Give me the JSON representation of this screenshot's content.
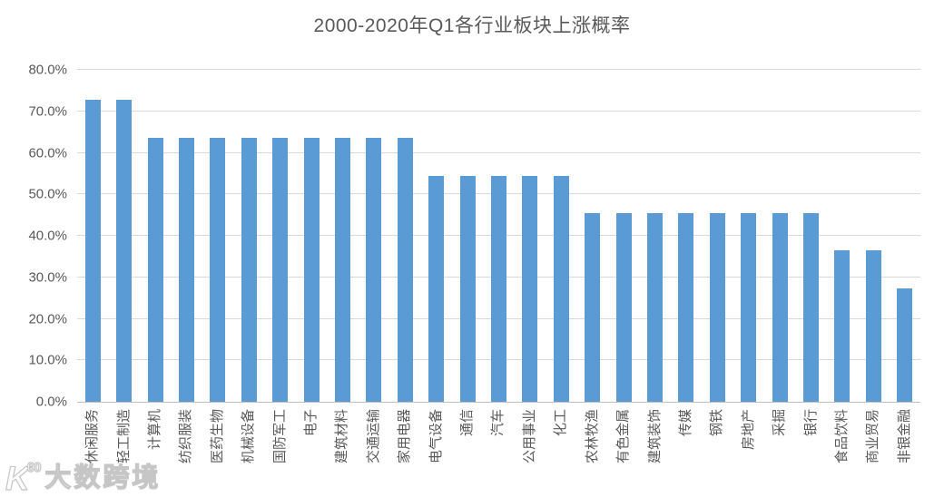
{
  "title": "2000-2020年Q1各行业板块上涨概率",
  "chart_data": {
    "type": "bar",
    "title": "2000-2020年Q1各行业板块上涨概率",
    "xlabel": "",
    "ylabel": "",
    "ylim": [
      0,
      80
    ],
    "grid": true,
    "legend": "none",
    "ytick_labels": [
      "80.0%",
      "70.0%",
      "60.0%",
      "50.0%",
      "40.0%",
      "30.0%",
      "20.0%",
      "10.0%",
      "0.0%"
    ],
    "categories": [
      "休闲服务",
      "轻工制造",
      "计算机",
      "纺织服装",
      "医药生物",
      "机械设备",
      "国防军工",
      "电子",
      "建筑材料",
      "交通运输",
      "家用电器",
      "电气设备",
      "通信",
      "汽车",
      "公用事业",
      "化工",
      "农林牧渔",
      "有色金属",
      "建筑装饰",
      "传媒",
      "钢铁",
      "房地产",
      "采掘",
      "银行",
      "食品饮料",
      "商业贸易",
      "非银金融"
    ],
    "values": [
      72.7,
      72.7,
      63.6,
      63.6,
      63.6,
      63.6,
      63.6,
      63.6,
      63.6,
      63.6,
      63.6,
      54.5,
      54.5,
      54.5,
      54.5,
      54.5,
      45.5,
      45.5,
      45.5,
      45.5,
      45.5,
      45.5,
      45.5,
      45.5,
      36.4,
      36.4,
      27.3
    ],
    "unit": "%"
  },
  "colors": {
    "bar": "#5B9BD5",
    "gridline": "#D9D9D9",
    "axis_line": "#BFBFBF",
    "text": "#595959",
    "background": "#FFFFFF"
  },
  "watermark": {
    "logo_k": "K",
    "logo_circles": "00",
    "brand": "大数跨境"
  }
}
